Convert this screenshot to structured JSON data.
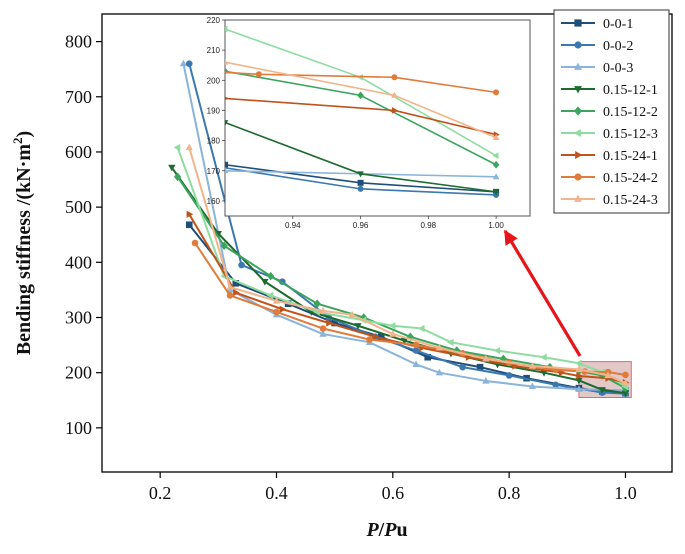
{
  "chart_data": {
    "type": "line",
    "xlabel_italic": "P",
    "xlabel_slash": "/",
    "xlabel_sub": "u",
    "ylabel": "Bending stiffness /(kN·m",
    "ylabel_sup": "2",
    "ylabel_close": ")",
    "xlim": [
      0.1,
      1.08
    ],
    "ylim": [
      20,
      850
    ],
    "xticks": [
      0.2,
      0.4,
      0.6,
      0.8,
      1.0
    ],
    "xtick_labels": [
      "0.2",
      "0.4",
      "0.6",
      "0.8",
      "1.0"
    ],
    "yticks": [
      100,
      200,
      300,
      400,
      500,
      600,
      700,
      800
    ],
    "ytick_labels": [
      "100",
      "200",
      "300",
      "400",
      "500",
      "600",
      "700",
      "800"
    ],
    "series": [
      {
        "name": "0-0-1",
        "color": "#1f4e79",
        "marker": "square",
        "x": [
          0.25,
          0.33,
          0.42,
          0.5,
          0.58,
          0.66,
          0.75,
          0.83,
          0.92,
          0.96,
          1.0
        ],
        "y": [
          468,
          362,
          325,
          290,
          265,
          228,
          210,
          190,
          172,
          166,
          163
        ]
      },
      {
        "name": "0-0-2",
        "color": "#3a78b0",
        "marker": "circle",
        "x": [
          0.25,
          0.34,
          0.41,
          0.49,
          0.57,
          0.64,
          0.72,
          0.8,
          0.88,
          0.96,
          1.0
        ],
        "y": [
          760,
          395,
          365,
          300,
          265,
          240,
          210,
          195,
          178,
          164,
          162
        ]
      },
      {
        "name": "0-0-3",
        "color": "#8ab4da",
        "marker": "triangle",
        "x": [
          0.24,
          0.32,
          0.4,
          0.48,
          0.56,
          0.64,
          0.68,
          0.76,
          0.84,
          0.92,
          1.0
        ],
        "y": [
          760,
          350,
          305,
          270,
          255,
          215,
          200,
          185,
          175,
          170,
          168
        ]
      },
      {
        "name": "0.15-12-1",
        "color": "#1e6b2f",
        "marker": "triangle-down",
        "x": [
          0.22,
          0.3,
          0.38,
          0.46,
          0.54,
          0.62,
          0.7,
          0.78,
          0.86,
          0.92,
          0.96,
          1.0
        ],
        "y": [
          572,
          452,
          365,
          310,
          285,
          258,
          235,
          215,
          200,
          186,
          169,
          163
        ]
      },
      {
        "name": "0.15-12-2",
        "color": "#3ba55d",
        "marker": "diamond",
        "x": [
          0.23,
          0.31,
          0.39,
          0.47,
          0.55,
          0.63,
          0.71,
          0.79,
          0.87,
          0.92,
          0.96,
          1.0
        ],
        "y": [
          555,
          430,
          375,
          325,
          300,
          265,
          240,
          225,
          210,
          203,
          195,
          172
        ]
      },
      {
        "name": "0.15-12-3",
        "color": "#8fdca0",
        "marker": "triangle-left",
        "x": [
          0.23,
          0.31,
          0.39,
          0.47,
          0.55,
          0.6,
          0.65,
          0.7,
          0.78,
          0.86,
          0.92,
          0.96,
          1.0
        ],
        "y": [
          608,
          375,
          340,
          310,
          295,
          285,
          280,
          255,
          240,
          228,
          217,
          201,
          175
        ]
      },
      {
        "name": "0.15-24-1",
        "color": "#c0531a",
        "marker": "triangle-right",
        "x": [
          0.25,
          0.33,
          0.41,
          0.49,
          0.57,
          0.65,
          0.73,
          0.81,
          0.89,
          0.92,
          0.97,
          1.0
        ],
        "y": [
          487,
          345,
          315,
          290,
          265,
          245,
          228,
          212,
          200,
          194,
          190,
          182
        ]
      },
      {
        "name": "0.15-24-2",
        "color": "#e07b39",
        "marker": "circle",
        "x": [
          0.26,
          0.32,
          0.4,
          0.48,
          0.56,
          0.64,
          0.72,
          0.8,
          0.88,
          0.93,
          0.97,
          1.0
        ],
        "y": [
          435,
          340,
          310,
          280,
          260,
          250,
          235,
          218,
          205,
          202,
          201,
          196
        ]
      },
      {
        "name": "0.15-24-3",
        "color": "#f2b48a",
        "marker": "triangle",
        "x": [
          0.25,
          0.32,
          0.4,
          0.48,
          0.53,
          0.6,
          0.68,
          0.76,
          0.84,
          0.92,
          0.97,
          1.0
        ],
        "y": [
          608,
          355,
          330,
          312,
          305,
          270,
          245,
          225,
          212,
          206,
          195,
          181
        ]
      }
    ],
    "inset": {
      "xlim": [
        0.92,
        1.01
      ],
      "ylim": [
        155,
        220
      ],
      "xticks": [
        0.94,
        0.96,
        0.98,
        1.0
      ],
      "xtick_labels": [
        "0.94",
        "0.96",
        "0.98",
        "1.00"
      ],
      "yticks": [
        160,
        170,
        180,
        190,
        200,
        210,
        220
      ],
      "ytick_labels": [
        "160",
        "170",
        "180",
        "190",
        "200",
        "210",
        "220"
      ],
      "zoom_region": {
        "x": [
          0.92,
          1.01
        ],
        "y": [
          155,
          220
        ]
      }
    }
  }
}
